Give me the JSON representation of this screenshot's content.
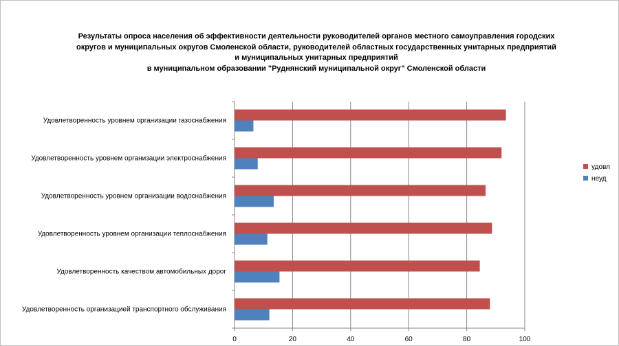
{
  "chart_data": {
    "type": "bar",
    "orientation": "horizontal",
    "title_lines": [
      "Результаты опроса населения об эффективности деятельности руководителей органов местного самоуправления городских",
      "округов и муниципальных округов Смоленской области, руководителей областных государственных унитарных предприятий",
      "и муниципальных унитарных предприятий",
      "в муниципальном образовании \"Руднянский муниципальной округ\" Смоленской области"
    ],
    "categories": [
      "Удовлетворенность уровнем организации газоснабжения",
      "Удовлетворенность уровнем организации электроснабжения",
      "Удовлетворенность уровнем организации водоснабжения",
      "Удовлетворенность уровнем организации теплоснабжения",
      "Удовлетворенность качеством автомобильных дорог",
      "Удовлетворенность организацией транспортного обслуживания"
    ],
    "series": [
      {
        "name": "удовл",
        "color": "#c0504d",
        "values": [
          93.5,
          92,
          86.5,
          88.7,
          84.5,
          88
        ]
      },
      {
        "name": "неуд",
        "color": "#4f81bd",
        "values": [
          6.5,
          8,
          13.5,
          11.3,
          15.5,
          12
        ]
      }
    ],
    "xlim": [
      0,
      100
    ],
    "xticks": [
      0,
      20,
      40,
      60,
      80,
      100
    ],
    "grid": true,
    "legend_position": "right"
  }
}
